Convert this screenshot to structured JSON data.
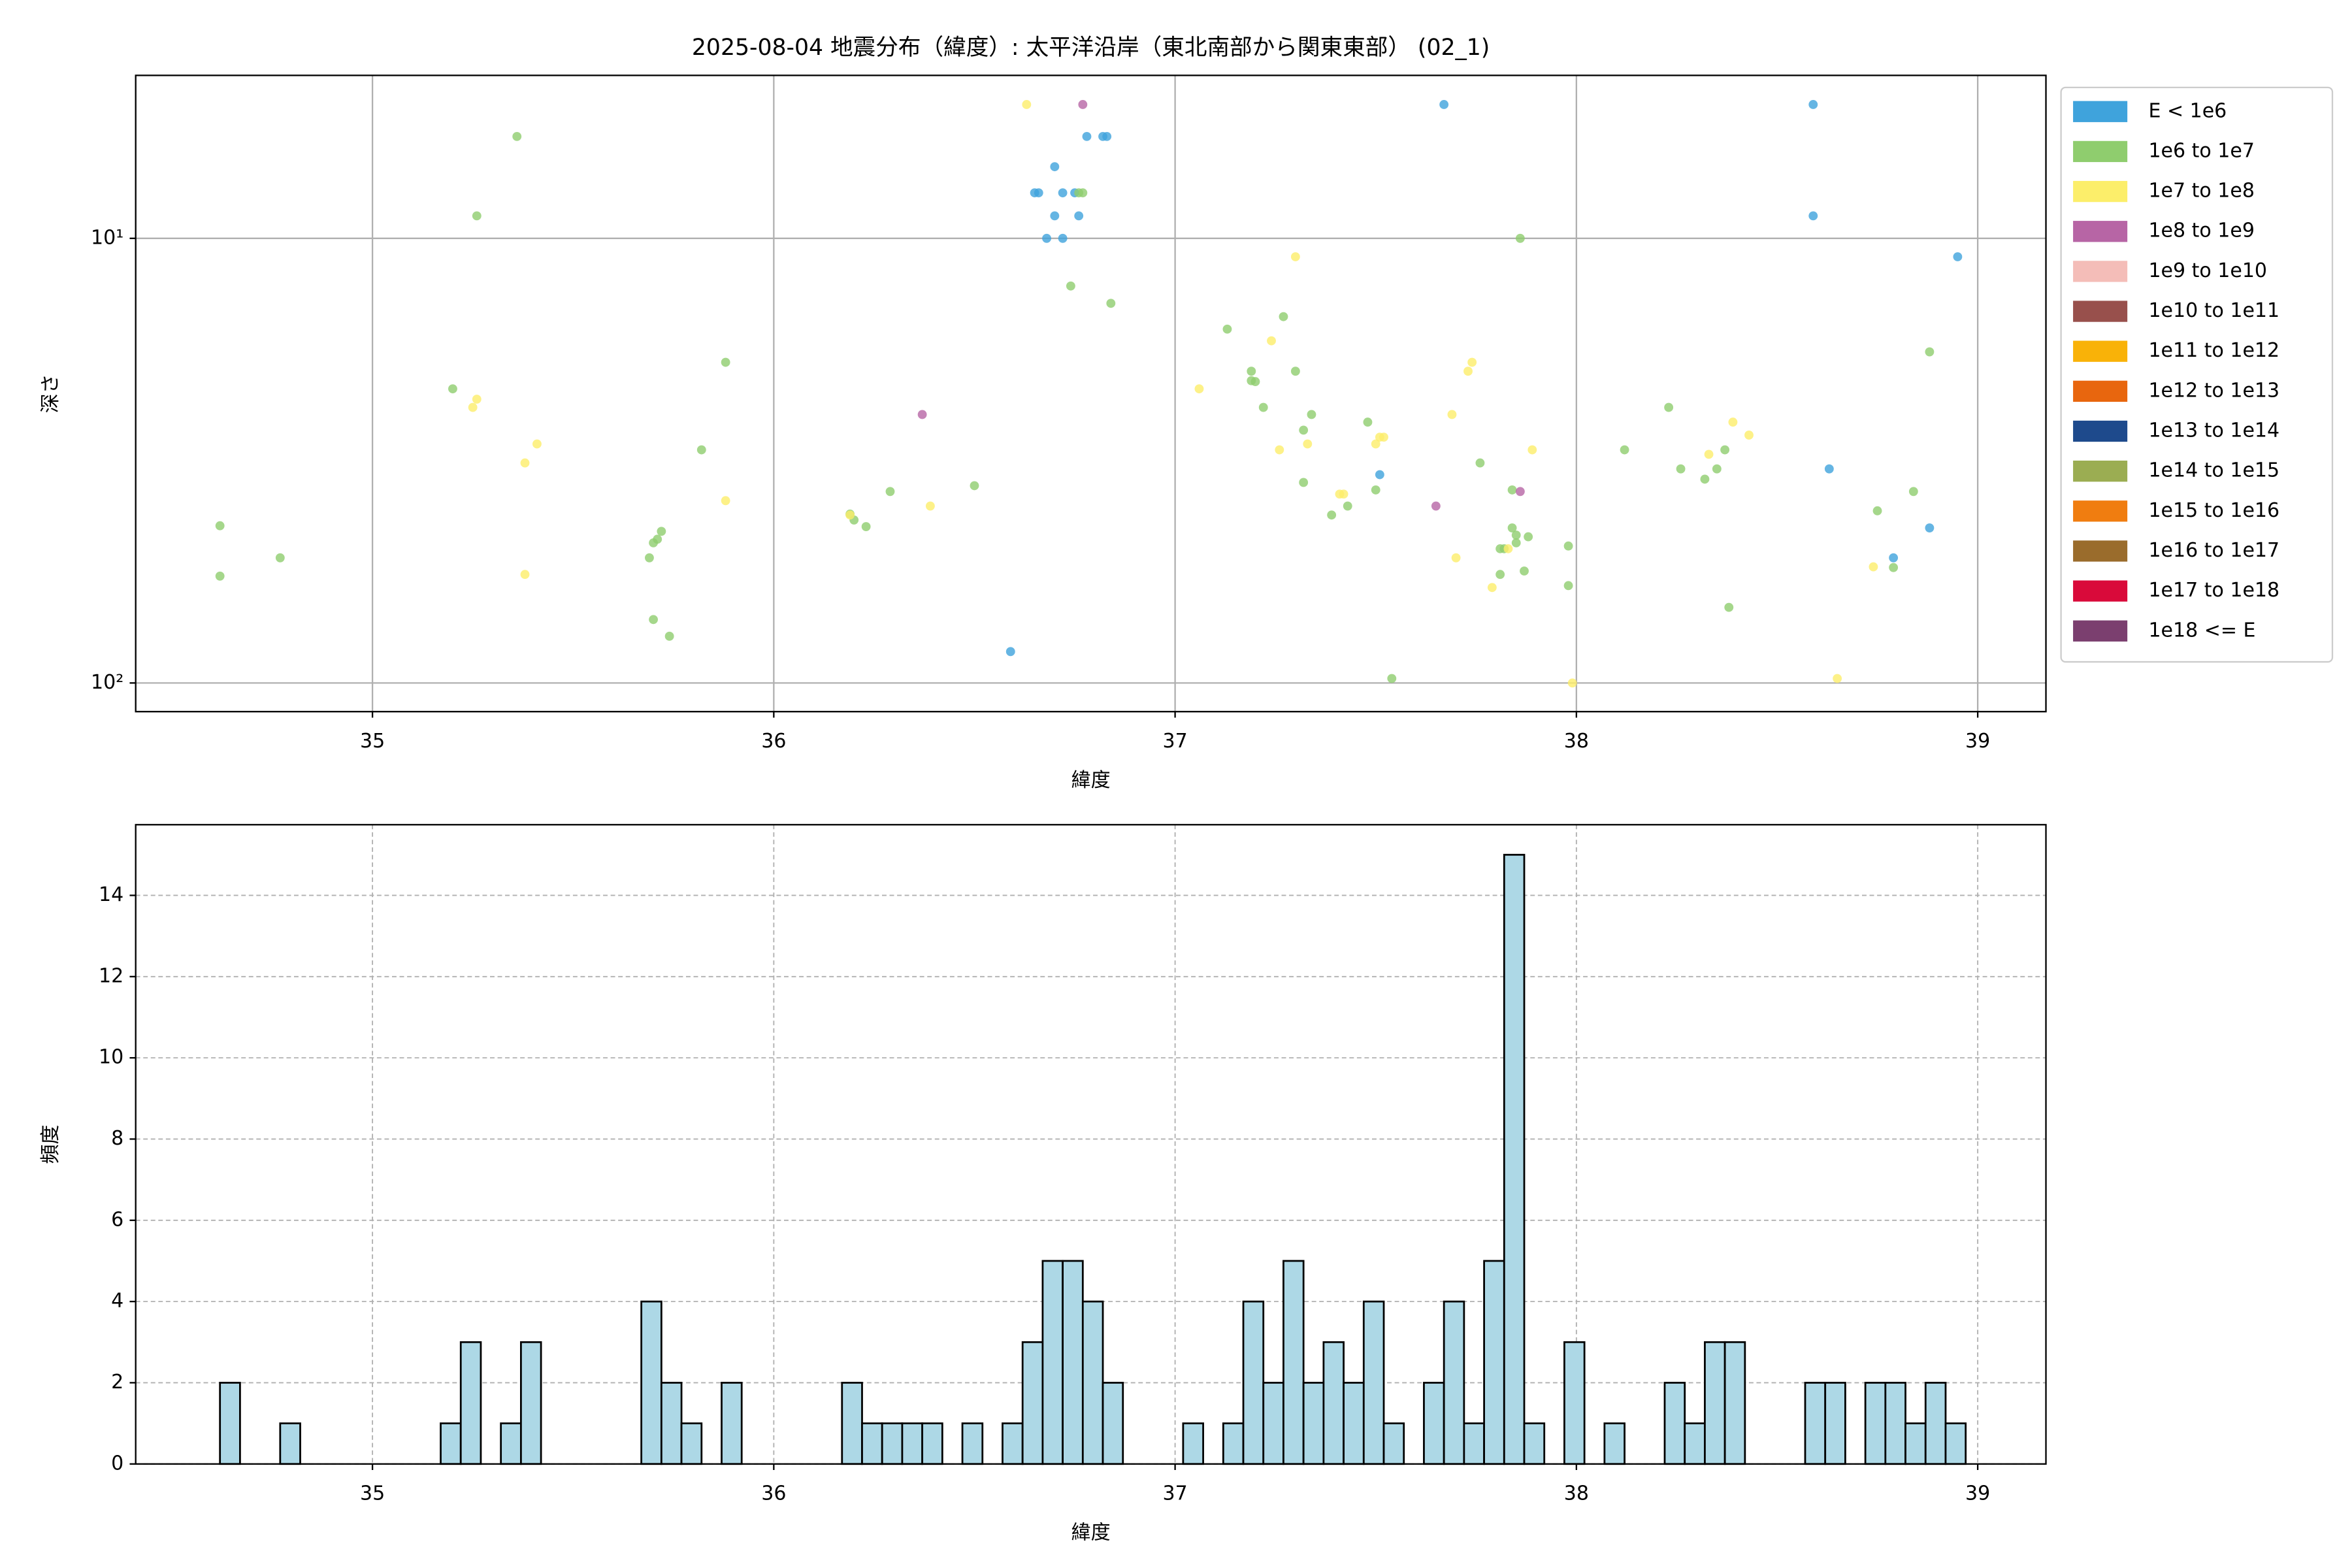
{
  "chart_data": [
    {
      "type": "scatter",
      "title": "2025-08-04 地震分布（緯度）: 太平洋沿岸（東北南部から関東東部） (02_1)",
      "x_label": "緯度",
      "y_label": "深さ",
      "xlim": [
        34.41,
        39.17
      ],
      "xticks": [
        35,
        36,
        37,
        38,
        39
      ],
      "ylim": [
        4.3,
        116
      ],
      "ylog": true,
      "y_inverted": true,
      "yticks": [
        {
          "value": 10,
          "label": "10¹"
        },
        {
          "value": 100,
          "label": "10²"
        }
      ],
      "grid": true,
      "grid_linestyle": "solid",
      "legend": "outside right",
      "series": [
        {
          "name": "E < 1e6",
          "color": "#3fa3dc",
          "x": [
            36.65,
            36.66,
            36.7,
            36.68,
            36.72,
            36.72,
            36.75,
            36.76,
            36.7,
            36.78,
            36.82,
            36.83,
            37.67,
            38.59,
            38.59,
            38.95,
            37.51,
            38.63,
            38.88,
            38.79,
            36.59
          ],
          "y": [
            7.9,
            7.9,
            8.9,
            10,
            10,
            7.9,
            7.9,
            8.9,
            6.9,
            5.9,
            5.9,
            5.9,
            5,
            5,
            8.9,
            11,
            34,
            33,
            44.8,
            52.3,
            85
          ]
        },
        {
          "name": "1e6 to 1e7",
          "color": "#8fcd6e",
          "x": [
            35.36,
            35.26,
            36.76,
            36.77,
            36.74,
            36.84,
            37.86,
            37.13,
            37.27,
            37.19,
            37.19,
            37.2,
            37.22,
            37.3,
            37.34,
            37.32,
            37.48,
            37.5,
            37.43,
            37.39,
            37.32,
            37.76,
            37.84,
            37.84,
            37.85,
            37.85,
            37.88,
            37.82,
            37.81,
            37.81,
            37.87,
            37.98,
            37.98,
            37.54,
            38.23,
            38.12,
            38.26,
            38.32,
            38.35,
            38.37,
            38.38,
            38.75,
            38.84,
            38.88,
            38.79,
            35.2,
            35.88,
            35.82,
            36.5,
            36.29,
            36.19,
            36.2,
            36.23,
            35.72,
            35.71,
            35.7,
            35.69,
            35.7,
            35.74,
            34.62,
            34.62,
            34.77
          ],
          "y": [
            5.9,
            8.9,
            7.9,
            7.9,
            12.8,
            14,
            10,
            16,
            15,
            19.9,
            20.9,
            21,
            24,
            19.9,
            24.9,
            27,
            25.9,
            36.8,
            40,
            41.9,
            35.4,
            32,
            36.8,
            44.8,
            46.5,
            48.4,
            46.9,
            49.9,
            49.9,
            57,
            56,
            49.2,
            60.4,
            97.7,
            24,
            29.9,
            33,
            34.8,
            33,
            29.9,
            67.6,
            41,
            37.1,
            18,
            55,
            21.8,
            19,
            29.9,
            36,
            37.1,
            41.7,
            43,
            44.5,
            45.6,
            47.5,
            48.4,
            52.3,
            72,
            78.5,
            44.3,
            57.5,
            52.3
          ]
        },
        {
          "name": "1e7 to 1e8",
          "color": "#fcee6a",
          "x": [
            36.63,
            37.3,
            37.24,
            37.74,
            37.73,
            37.06,
            35.26,
            35.25,
            37.69,
            35.41,
            37.33,
            37.51,
            37.52,
            37.5,
            37.26,
            37.89,
            35.38,
            38.39,
            38.43,
            38.33,
            35.88,
            36.39,
            36.19,
            37.41,
            37.42,
            37.7,
            35.38,
            37.79,
            38.74,
            37.83,
            37.99,
            38.65
          ],
          "y": [
            5,
            11,
            17,
            19,
            19.9,
            21.8,
            23,
            24,
            24.9,
            29,
            29,
            28,
            28,
            29,
            29.9,
            29.9,
            32,
            25.9,
            27.7,
            30.6,
            38.9,
            40,
            41.9,
            37.6,
            37.6,
            52.3,
            57,
            61,
            54.8,
            49.9,
            100,
            97.7
          ]
        },
        {
          "name": "1e8 to 1e9",
          "color": "#b765a5",
          "x": [
            36.77,
            36.37,
            37.65,
            37.86
          ],
          "y": [
            5,
            24.9,
            40,
            37.1
          ]
        },
        {
          "name": "1e9 to 1e10",
          "color": "#f4bdb8",
          "x": [],
          "y": []
        },
        {
          "name": "1e10 to 1e11",
          "color": "#98504c",
          "x": [],
          "y": []
        },
        {
          "name": "1e11 to 1e12",
          "color": "#f9b208",
          "x": [],
          "y": []
        },
        {
          "name": "1e12 to 1e13",
          "color": "#e8660e",
          "x": [],
          "y": []
        },
        {
          "name": "1e13 to 1e14",
          "color": "#1e4a8c",
          "x": [],
          "y": []
        },
        {
          "name": "1e14 to 1e15",
          "color": "#9bad52",
          "x": [],
          "y": []
        },
        {
          "name": "1e15 to 1e16",
          "color": "#f07d10",
          "x": [],
          "y": []
        },
        {
          "name": "1e16 to 1e17",
          "color": "#9a6c2c",
          "x": [],
          "y": []
        },
        {
          "name": "1e17 to 1e18",
          "color": "#d90a3a",
          "x": [],
          "y": []
        },
        {
          "name": "1e18 <= E",
          "color": "#7b3f6f",
          "x": [],
          "y": []
        }
      ]
    },
    {
      "type": "histogram",
      "x_label": "緯度",
      "y_label": "頻度",
      "xlim": [
        34.41,
        39.17
      ],
      "xticks": [
        35,
        36,
        37,
        38,
        39
      ],
      "ylim": [
        0,
        15.74
      ],
      "yticks": [
        0,
        2,
        4,
        6,
        8,
        10,
        12,
        14
      ],
      "grid": true,
      "grid_linestyle": "dashed",
      "color": "#add8e6",
      "edgecolor": "#000000",
      "bins": [
        34.62,
        34.67,
        34.72,
        34.77,
        34.82,
        34.87,
        34.92,
        34.97,
        35.02,
        35.07,
        35.12,
        35.17,
        35.22,
        35.27,
        35.32,
        35.37,
        35.42,
        35.47,
        35.52,
        35.57,
        35.62,
        35.67,
        35.72,
        35.77,
        35.82,
        35.87,
        35.92,
        35.97,
        36.02,
        36.07,
        36.12,
        36.17,
        36.22,
        36.27,
        36.32,
        36.37,
        36.42,
        36.47,
        36.52,
        36.57,
        36.62,
        36.67,
        36.72,
        36.77,
        36.82,
        36.87,
        36.92,
        36.97,
        37.02,
        37.07,
        37.12,
        37.17,
        37.22,
        37.27,
        37.32,
        37.37,
        37.42,
        37.47,
        37.52,
        37.57,
        37.62,
        37.67,
        37.72,
        37.77,
        37.82,
        37.87,
        37.92,
        37.97,
        38.02,
        38.07,
        38.12,
        38.17,
        38.22,
        38.27,
        38.32,
        38.37,
        38.42,
        38.47,
        38.52,
        38.57,
        38.62,
        38.67,
        38.72,
        38.77,
        38.82,
        38.87,
        38.92,
        38.97
      ],
      "values": [
        2,
        0,
        0,
        1,
        0,
        0,
        0,
        0,
        0,
        0,
        0,
        1,
        3,
        0,
        1,
        3,
        0,
        0,
        0,
        0,
        0,
        4,
        2,
        1,
        0,
        2,
        0,
        0,
        0,
        0,
        0,
        2,
        1,
        1,
        1,
        1,
        0,
        1,
        0,
        1,
        3,
        5,
        5,
        4,
        2,
        0,
        0,
        0,
        1,
        0,
        1,
        4,
        2,
        5,
        2,
        3,
        2,
        4,
        1,
        0,
        2,
        4,
        1,
        5,
        15,
        1,
        0,
        3,
        0,
        1,
        0,
        0,
        2,
        1,
        3,
        3,
        0,
        0,
        0,
        2,
        2,
        0,
        2,
        2,
        1,
        2,
        1
      ]
    }
  ]
}
